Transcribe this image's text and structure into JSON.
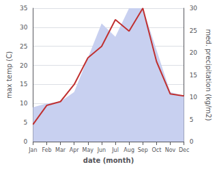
{
  "chart_data": {
    "type": "line",
    "xlabel": "date (month)",
    "ylabel": "max temp (C)",
    "y2label": "med. precipitation (kg/m2)",
    "categories": [
      "Jan",
      "Feb",
      "Mar",
      "Apr",
      "May",
      "Jun",
      "Jul",
      "Aug",
      "Sep",
      "Oct",
      "Nov",
      "Dec"
    ],
    "series": [
      {
        "type": "area",
        "color": "#c8d0f0",
        "values": [
          9.0,
          10.0,
          10.5,
          13.0,
          22.0,
          31.0,
          27.5,
          35.0,
          35.0,
          24.0,
          13.0,
          12.0
        ]
      },
      {
        "type": "line",
        "color": "#c03030",
        "values": [
          4.5,
          9.5,
          10.5,
          15.0,
          22.0,
          25.0,
          32.0,
          29.0,
          35.0,
          21.0,
          12.5,
          12.0
        ]
      }
    ],
    "ylim": [
      0,
      35
    ],
    "yticks": [
      0,
      5,
      10,
      15,
      20,
      25,
      30,
      35
    ],
    "y2lim": [
      0,
      30
    ],
    "y2ticks": [
      0,
      5,
      10,
      15,
      20,
      25,
      30
    ],
    "grid": true
  }
}
